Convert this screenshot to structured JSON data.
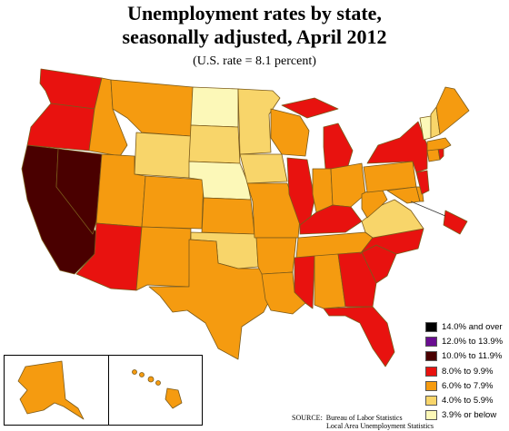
{
  "title_line1": "Unemployment rates by state,",
  "title_line2": "seasonally adjusted, April 2012",
  "subtitle": "(U.S. rate = 8.1 percent)",
  "legend": [
    {
      "label": "14.0% and over",
      "color": "#000000"
    },
    {
      "label": "12.0% to 13.9%",
      "color": "#6a0d91"
    },
    {
      "label": "10.0% to 11.9%",
      "color": "#4a0000"
    },
    {
      "label": "8.0% to 9.9%",
      "color": "#e8120f"
    },
    {
      "label": "6.0% to 7.9%",
      "color": "#f59b10"
    },
    {
      "label": "4.0% to 5.9%",
      "color": "#f8d56a"
    },
    {
      "label": "3.9% or below",
      "color": "#fcf8b8"
    }
  ],
  "source_label": "SOURCE:",
  "source_line1": "Bureau of Labor Statistics",
  "source_line2": "Local Area Unemployment Statistics"
}
